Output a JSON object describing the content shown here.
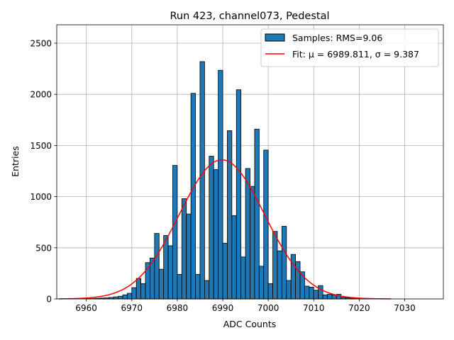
{
  "chart_data": {
    "type": "bar",
    "title": "Run 423, channel073, Pedestal",
    "xlabel": "ADC Counts",
    "ylabel": "Entries",
    "xlim": [
      6953.5,
      7038.5
    ],
    "ylim": [
      0,
      2680
    ],
    "xticks": [
      6960,
      6970,
      6980,
      6990,
      7000,
      7010,
      7020,
      7030
    ],
    "yticks": [
      0,
      500,
      1000,
      1500,
      2000,
      2500
    ],
    "grid": true,
    "legend_position": "top-right",
    "legend": [
      {
        "label": "Samples: RMS=9.06",
        "kind": "bar"
      },
      {
        "label": "Fit: μ = 6989.811, σ = 9.387",
        "kind": "line"
      }
    ],
    "histogram": {
      "bin_width": 1,
      "bins": [
        [
          6960,
          3
        ],
        [
          6961,
          4
        ],
        [
          6962,
          6
        ],
        [
          6963,
          8
        ],
        [
          6964,
          10
        ],
        [
          6965,
          14
        ],
        [
          6966,
          20
        ],
        [
          6967,
          26
        ],
        [
          6968,
          40
        ],
        [
          6969,
          55
        ],
        [
          6970,
          110
        ],
        [
          6971,
          200
        ],
        [
          6972,
          150
        ],
        [
          6973,
          355
        ],
        [
          6974,
          400
        ],
        [
          6975,
          640
        ],
        [
          6976,
          290
        ],
        [
          6977,
          620
        ],
        [
          6978,
          520
        ],
        [
          6979,
          1305
        ],
        [
          6980,
          240
        ],
        [
          6981,
          980
        ],
        [
          6982,
          830
        ],
        [
          6983,
          2010
        ],
        [
          6984,
          240
        ],
        [
          6985,
          2320
        ],
        [
          6986,
          180
        ],
        [
          6987,
          1395
        ],
        [
          6988,
          1265
        ],
        [
          6989,
          2235
        ],
        [
          6990,
          545
        ],
        [
          6991,
          1645
        ],
        [
          6992,
          815
        ],
        [
          6993,
          2045
        ],
        [
          6994,
          410
        ],
        [
          6995,
          1275
        ],
        [
          6996,
          1100
        ],
        [
          6997,
          1660
        ],
        [
          6998,
          320
        ],
        [
          6999,
          1455
        ],
        [
          7000,
          150
        ],
        [
          7001,
          660
        ],
        [
          7002,
          470
        ],
        [
          7003,
          710
        ],
        [
          7004,
          180
        ],
        [
          7005,
          435
        ],
        [
          7006,
          365
        ],
        [
          7007,
          265
        ],
        [
          7008,
          125
        ],
        [
          7009,
          115
        ],
        [
          7010,
          85
        ],
        [
          7011,
          130
        ],
        [
          7012,
          40
        ],
        [
          7013,
          45
        ],
        [
          7014,
          38
        ],
        [
          7015,
          45
        ],
        [
          7016,
          15
        ],
        [
          7017,
          10
        ],
        [
          7018,
          6
        ],
        [
          7019,
          4
        ],
        [
          7020,
          2
        ],
        [
          7021,
          1
        ]
      ],
      "color": "#1f77b4",
      "edge_color": "#000000"
    },
    "fit": {
      "type": "gaussian",
      "mu": 6989.811,
      "sigma": 9.387,
      "amplitude": 1360,
      "x_range": [
        6954,
        7027
      ],
      "color": "#ff0000"
    }
  }
}
